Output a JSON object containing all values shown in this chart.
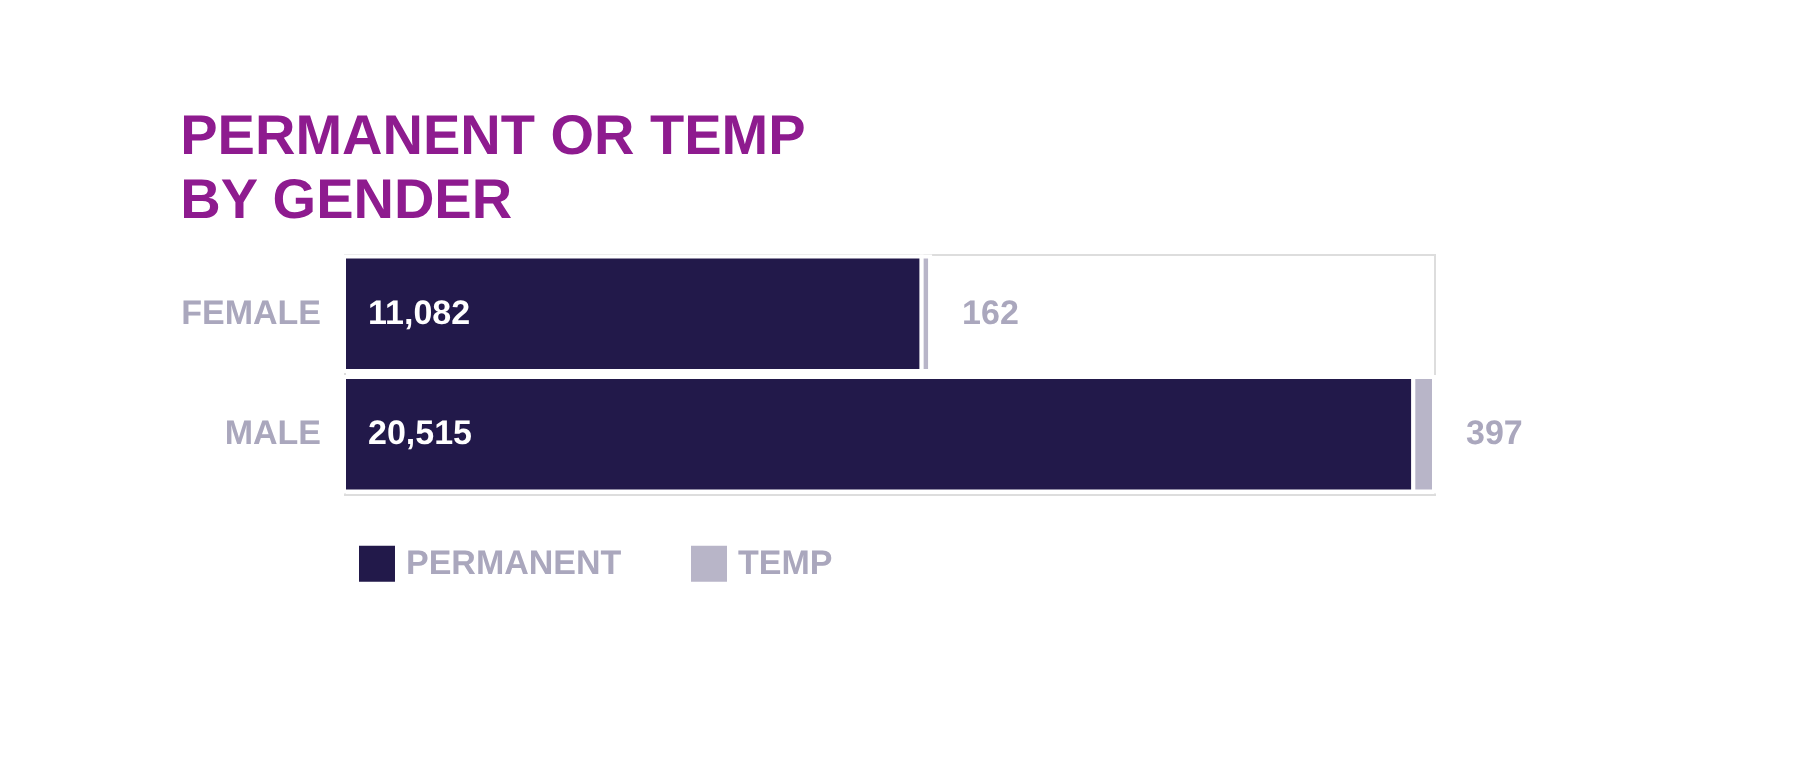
{
  "chart_data": {
    "type": "bar",
    "orientation": "horizontal",
    "stacked": true,
    "title": "PERMANENT OR TEMP BY GENDER",
    "categories": [
      "FEMALE",
      "MALE"
    ],
    "series": [
      {
        "name": "PERMANENT",
        "color": "#22194a",
        "values": [
          11082,
          20515
        ],
        "value_labels": [
          "11,082",
          "20,515"
        ]
      },
      {
        "name": "TEMP",
        "color": "#b8b5c8",
        "values": [
          162,
          397
        ],
        "value_labels": [
          "162",
          "397"
        ]
      }
    ],
    "legend": "bottom",
    "grid": false
  }
}
